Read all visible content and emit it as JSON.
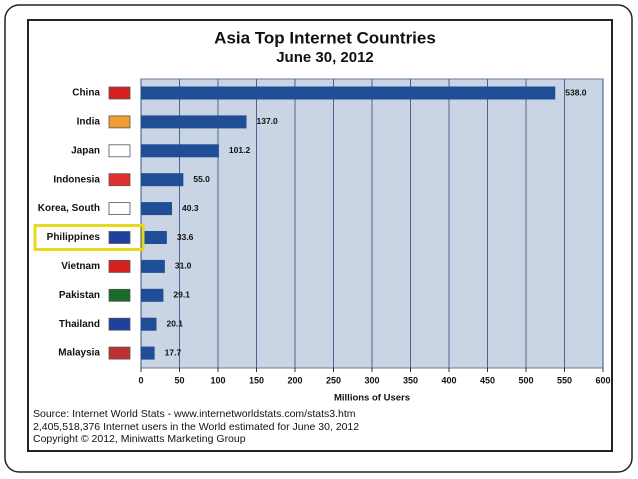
{
  "chart_data": {
    "type": "bar",
    "orientation": "horizontal",
    "title": "Asia Top Internet Countries",
    "subtitle": "June 30, 2012",
    "categories": [
      "China",
      "India",
      "Japan",
      "Indonesia",
      "Korea, South",
      "Philippines",
      "Vietnam",
      "Pakistan",
      "Thailand",
      "Malaysia"
    ],
    "values": [
      538,
      137,
      101.2,
      55,
      40.3,
      33.6,
      31,
      29.1,
      20.1,
      17.7
    ],
    "value_labels": [
      "538.0",
      "137.0",
      "101.2",
      "55.0",
      "40.3",
      "33.6",
      "31.0",
      "29.1",
      "20.1",
      "17.7"
    ],
    "color": "#1f4e96",
    "xlabel": "Millions of Users",
    "xlim": [
      0,
      600
    ],
    "xticks": [
      0,
      50,
      100,
      150,
      200,
      250,
      300,
      350,
      400,
      450,
      500,
      550,
      600
    ],
    "grid": true,
    "notes": [
      "Source: Internet World Stats - www.internetworldstats.com/stats3.htm",
      "2,405,518,376 Internet users in the World estimated for June 30, 2012",
      "Copyright © 2012, Miniwatts Marketing Group"
    ]
  }
}
